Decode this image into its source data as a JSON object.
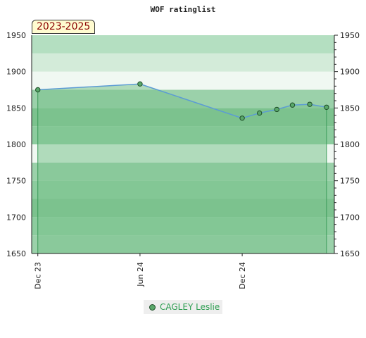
{
  "chart_data": {
    "type": "line",
    "title": "WOF ratinglist",
    "period_label": "2023-2025",
    "ylim": [
      1650,
      1950
    ],
    "yticks": [
      1650,
      1700,
      1750,
      1800,
      1850,
      1900,
      1950
    ],
    "x_tick_labels": [
      "Dec 23",
      "Jun 24",
      "Dec 24"
    ],
    "x_tick_dates": [
      "2023-12-01",
      "2024-06-01",
      "2024-12-01"
    ],
    "x_range": [
      "2023-11-20",
      "2025-05-15"
    ],
    "series": [
      {
        "name": "CAGLEY Leslie",
        "points": [
          {
            "x": "2023-12-01",
            "y": 1875
          },
          {
            "x": "2024-06-01",
            "y": 1883
          },
          {
            "x": "2024-12-01",
            "y": 1836
          },
          {
            "x": "2025-01-01",
            "y": 1843
          },
          {
            "x": "2025-02-01",
            "y": 1848
          },
          {
            "x": "2025-03-01",
            "y": 1854
          },
          {
            "x": "2025-04-01",
            "y": 1855
          },
          {
            "x": "2025-05-01",
            "y": 1851
          }
        ]
      }
    ],
    "legend_position": "bottom",
    "colors": {
      "line": "#5b9bd5",
      "marker": "#5aa86b",
      "fill": "#7cc28e"
    }
  }
}
